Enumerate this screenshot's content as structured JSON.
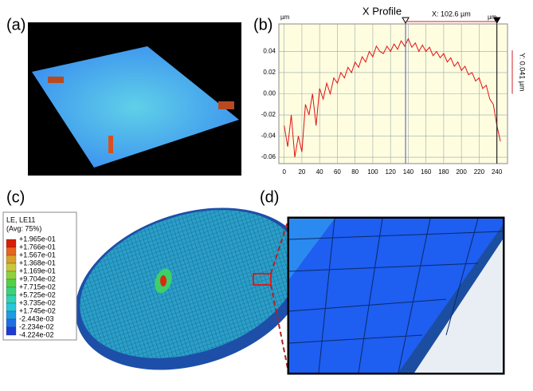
{
  "panel_labels": [
    "(a)",
    "(b)",
    "(c)",
    "(d)"
  ],
  "chart_data": {
    "type": "line",
    "title": "X Profile",
    "y_unit": "µm",
    "x_unit": "µm",
    "annotations": [
      "X: 102.6 µm",
      "Y: 0.041 µm"
    ],
    "x": [
      0,
      4,
      8,
      12,
      16,
      20,
      24,
      28,
      32,
      36,
      40,
      44,
      48,
      52,
      56,
      60,
      64,
      68,
      72,
      76,
      80,
      84,
      88,
      92,
      96,
      100,
      104,
      108,
      112,
      116,
      120,
      124,
      128,
      132,
      136,
      140,
      144,
      148,
      152,
      156,
      160,
      164,
      168,
      172,
      176,
      180,
      184,
      188,
      192,
      196,
      200,
      204,
      208,
      212,
      216,
      220,
      224,
      228,
      232,
      236,
      240,
      244
    ],
    "series": [
      {
        "name": "X Profile",
        "color": "#e01010",
        "values": [
          -0.03,
          -0.05,
          -0.02,
          -0.06,
          -0.04,
          -0.055,
          -0.01,
          -0.02,
          0.0,
          -0.03,
          0.005,
          -0.005,
          0.01,
          0.0,
          0.015,
          0.01,
          0.02,
          0.015,
          0.025,
          0.02,
          0.03,
          0.025,
          0.035,
          0.03,
          0.04,
          0.035,
          0.045,
          0.04,
          0.038,
          0.045,
          0.04,
          0.047,
          0.042,
          0.05,
          0.045,
          0.052,
          0.044,
          0.048,
          0.04,
          0.046,
          0.04,
          0.044,
          0.036,
          0.04,
          0.034,
          0.038,
          0.03,
          0.034,
          0.026,
          0.03,
          0.022,
          0.026,
          0.018,
          0.02,
          0.012,
          0.015,
          0.005,
          0.008,
          -0.005,
          -0.01,
          -0.03,
          -0.045
        ]
      }
    ],
    "cursor_x": [
      137,
      240
    ],
    "xlim": [
      -6,
      252
    ],
    "ylim": [
      -0.066,
      0.066
    ],
    "xticks": [
      0,
      20,
      40,
      60,
      80,
      100,
      120,
      140,
      160,
      180,
      200,
      220,
      240
    ],
    "yticks": [
      -0.06,
      -0.04,
      -0.02,
      {
        "value": 0,
        "label": "0.00"
      },
      0.02,
      0.04
    ],
    "grid": true
  },
  "fea_legend": {
    "title": "LE, LE11",
    "subtitle": "(Avg: 75%)",
    "labels": [
      "+1.965e-01",
      "+1.766e-01",
      "+1.567e-01",
      "+1.368e-01",
      "+1.169e-01",
      "+9.704e-02",
      "+7.715e-02",
      "+5.725e-02",
      "+3.735e-02",
      "+1.745e-02",
      "-2.443e-03",
      "-2.234e-02",
      "-4.224e-02"
    ],
    "colors": [
      "#d81e05",
      "#e8641e",
      "#d9a02a",
      "#c8c83c",
      "#8fd23c",
      "#4ed24a",
      "#3cd27c",
      "#2fd2b4",
      "#28c8dc",
      "#1e9be6",
      "#1e6ee6",
      "#1e3cd2"
    ]
  }
}
